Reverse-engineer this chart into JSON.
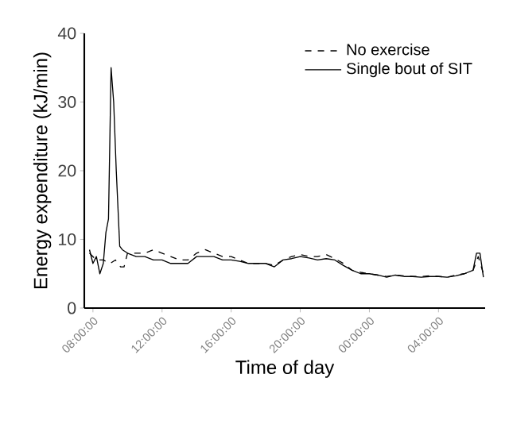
{
  "chart_data": {
    "type": "line",
    "xlabel": "Time of day",
    "ylabel": "Energy expenditure (kJ/min)",
    "xlim": [
      "--01-01T07:30",
      "--01-02T06:42"
    ],
    "ylim": [
      0,
      40
    ],
    "xticks": [
      {
        "value": "--01-01T08:00",
        "label": "08:00:00"
      },
      {
        "value": "--01-01T12:00",
        "label": "12:00:00"
      },
      {
        "value": "--01-01T16:00",
        "label": "16:00:00"
      },
      {
        "value": "--01-01T20:00",
        "label": "20:00:00"
      },
      {
        "value": "--01-02T00:00",
        "label": "00:00:00"
      },
      {
        "value": "--01-02T04:00",
        "label": "04:00:00"
      }
    ],
    "yticks": [
      0,
      10,
      20,
      30,
      40
    ],
    "grid": false,
    "legend": "top right",
    "marker": "none",
    "series": [
      {
        "name": "No exercise",
        "color": "#000000",
        "line_style": "dashed",
        "x": [
          "--01-01T07:48",
          "--01-01T08:12",
          "--01-01T08:36",
          "--01-01T09:00",
          "--01-01T09:18",
          "--01-01T09:36",
          "--01-01T09:48",
          "--01-01T10:00",
          "--01-01T10:30",
          "--01-01T11:00",
          "--01-01T11:30",
          "--01-01T12:00",
          "--01-01T12:30",
          "--01-01T13:00",
          "--01-01T13:30",
          "--01-01T14:00",
          "--01-01T14:30",
          "--01-01T15:00",
          "--01-01T15:30",
          "--01-01T16:00",
          "--01-01T16:30",
          "--01-01T17:00",
          "--01-01T17:30",
          "--01-01T18:00",
          "--01-01T18:30",
          "--01-01T19:00",
          "--01-01T19:30",
          "--01-01T20:00",
          "--01-01T20:30",
          "--01-01T21:00",
          "--01-01T21:30",
          "--01-01T22:00",
          "--01-01T22:30",
          "--01-01T23:00",
          "--01-01T23:30",
          "--01-02T00:00",
          "--01-02T00:30",
          "--01-02T01:00",
          "--01-02T01:30",
          "--01-02T02:00",
          "--01-02T02:30",
          "--01-02T03:00",
          "--01-02T03:30",
          "--01-02T04:00",
          "--01-02T04:30",
          "--01-02T05:00",
          "--01-02T05:30",
          "--01-02T06:00",
          "--01-02T06:18",
          "--01-02T06:36"
        ],
        "values": [
          8,
          7,
          7,
          6.5,
          7,
          6,
          6,
          8,
          8,
          8,
          8.5,
          8,
          7.5,
          7,
          7,
          8,
          8.5,
          8,
          7.5,
          7.5,
          7,
          6.5,
          6.5,
          6.5,
          6.2,
          7,
          7.5,
          7.8,
          7.5,
          7.5,
          7.8,
          7.2,
          6.5,
          5.5,
          5.2,
          5,
          4.8,
          4.6,
          4.8,
          4.7,
          4.6,
          4.6,
          4.7,
          4.6,
          4.5,
          4.8,
          5,
          5.5,
          7.5,
          5
        ]
      },
      {
        "name": "Single bout of SIT",
        "color": "#000000",
        "line_style": "solid",
        "x": [
          "--01-01T07:48",
          "--01-01T08:00",
          "--01-01T08:12",
          "--01-01T08:24",
          "--01-01T08:36",
          "--01-01T08:45",
          "--01-01T08:54",
          "--01-01T09:03",
          "--01-01T09:12",
          "--01-01T09:21",
          "--01-01T09:33",
          "--01-01T09:42",
          "--01-01T10:00",
          "--01-01T10:30",
          "--01-01T11:00",
          "--01-01T11:30",
          "--01-01T12:00",
          "--01-01T12:30",
          "--01-01T13:00",
          "--01-01T13:30",
          "--01-01T14:00",
          "--01-01T14:30",
          "--01-01T15:00",
          "--01-01T15:30",
          "--01-01T16:00",
          "--01-01T16:30",
          "--01-01T17:00",
          "--01-01T17:30",
          "--01-01T18:00",
          "--01-01T18:30",
          "--01-01T19:00",
          "--01-01T19:30",
          "--01-01T20:00",
          "--01-01T20:30",
          "--01-01T21:00",
          "--01-01T21:30",
          "--01-01T22:00",
          "--01-01T22:30",
          "--01-01T23:00",
          "--01-01T23:30",
          "--01-02T00:00",
          "--01-02T00:30",
          "--01-02T01:00",
          "--01-02T01:30",
          "--01-02T02:00",
          "--01-02T02:30",
          "--01-02T03:00",
          "--01-02T03:30",
          "--01-02T04:00",
          "--01-02T04:30",
          "--01-02T05:00",
          "--01-02T05:30",
          "--01-02T06:00",
          "--01-02T06:12",
          "--01-02T06:24",
          "--01-02T06:36"
        ],
        "values": [
          8.5,
          6.5,
          7.5,
          5,
          6.5,
          11,
          13,
          35,
          30,
          20,
          9,
          8.5,
          8,
          7.5,
          7.5,
          7,
          7,
          6.5,
          6.5,
          6.5,
          7.5,
          7.5,
          7.5,
          7,
          7,
          6.8,
          6.5,
          6.5,
          6.5,
          6,
          7,
          7.2,
          7.5,
          7.3,
          7,
          7.2,
          7,
          6.2,
          5.5,
          5,
          5,
          4.8,
          4.5,
          4.8,
          4.6,
          4.6,
          4.5,
          4.6,
          4.6,
          4.5,
          4.7,
          5,
          5.5,
          8,
          8,
          4.5
        ]
      }
    ]
  }
}
